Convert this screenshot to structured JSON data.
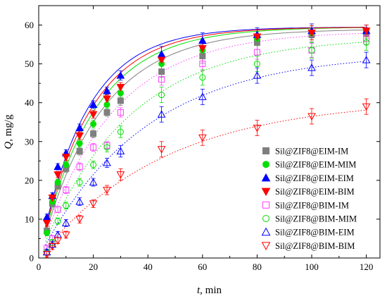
{
  "chart_data": {
    "type": "scatter",
    "xlabel_var": "t",
    "xlabel_unit": ", min",
    "ylabel_var": "Q",
    "ylabel_unit": ", mg/g",
    "xlim": [
      0,
      125
    ],
    "ylim": [
      0,
      65
    ],
    "x_ticks": [
      0,
      20,
      40,
      60,
      80,
      100,
      120
    ],
    "y_ticks": [
      0,
      10,
      20,
      30,
      40,
      50,
      60
    ],
    "x_tick_labels": [
      "0",
      "20",
      "40",
      "60",
      "80",
      "100",
      "120"
    ],
    "y_tick_labels": [
      "0",
      "10",
      "20",
      "30",
      "40",
      "50",
      "60"
    ],
    "grid": false,
    "legend_position": "bottom-right",
    "x": [
      3,
      5,
      7,
      10,
      15,
      20,
      25,
      30,
      45,
      60,
      80,
      100,
      120
    ],
    "series": [
      {
        "name": "Sil@ZIF8@EIM-IM",
        "marker": "square",
        "filled": true,
        "color": "#7f7f7f",
        "line": "solid",
        "values": [
          7,
          14,
          18.5,
          23,
          27.5,
          32,
          37.5,
          40.5,
          48,
          52,
          55.5,
          57.5,
          58
        ],
        "errors": [
          0.8,
          0.8,
          0.8,
          0.9,
          1,
          1,
          1,
          1.2,
          1.5,
          1.8,
          1.8,
          1.8,
          1.5
        ]
      },
      {
        "name": "Sil@ZIF8@EIM-MIM",
        "marker": "circle",
        "filled": true,
        "color": "#00e000",
        "line": "solid",
        "values": [
          6.5,
          14.5,
          19.5,
          24,
          29.5,
          34.5,
          39.5,
          42.5,
          50,
          53.5,
          56.5,
          58,
          58.5
        ],
        "errors": [
          0.8,
          0.8,
          0.8,
          0.9,
          1,
          1,
          1,
          1.2,
          1.5,
          1.8,
          1.8,
          1.8,
          1.5
        ]
      },
      {
        "name": "Sil@ZIF8@EIM-EIM",
        "marker": "triangle-up",
        "filled": true,
        "color": "#0000ff",
        "line": "solid",
        "values": [
          10.5,
          16,
          23.5,
          27,
          33.5,
          39.5,
          43,
          47,
          52.5,
          56,
          57.5,
          58.5,
          58.5
        ],
        "errors": [
          0.8,
          0.8,
          0.8,
          0.9,
          1,
          1,
          1,
          1.2,
          2,
          2,
          1.8,
          1.8,
          1.5
        ]
      },
      {
        "name": "Sil@ZIF8@EIM-BIM",
        "marker": "triangle-down",
        "filled": true,
        "color": "#ff0000",
        "line": "solid",
        "values": [
          9,
          15.5,
          21.5,
          26,
          31.5,
          37,
          41,
          44,
          51,
          54,
          57,
          58,
          58.5
        ],
        "errors": [
          0.8,
          0.8,
          0.8,
          0.9,
          1,
          1,
          1,
          1.2,
          1.5,
          1.8,
          1.8,
          1.8,
          1.5
        ]
      },
      {
        "name": "Sil@ZIF8@BIM-IM",
        "marker": "square",
        "filled": false,
        "color": "#ff40ff",
        "line": "dotted",
        "values": [
          2.5,
          5,
          12.5,
          17.5,
          23.5,
          28.5,
          29,
          37.5,
          46,
          50,
          53,
          53.5,
          56.5
        ],
        "errors": [
          0.8,
          0.8,
          0.8,
          0.9,
          1,
          1,
          1,
          1.2,
          1.5,
          1.8,
          1.8,
          1.8,
          1.5
        ]
      },
      {
        "name": "Sil@ZIF8@BIM-MIM",
        "marker": "circle",
        "filled": false,
        "color": "#00e000",
        "line": "dotted",
        "values": [
          1.5,
          4,
          9.5,
          13.5,
          19.5,
          24,
          28.5,
          32.5,
          42,
          46.5,
          50,
          53.5,
          55.5
        ],
        "errors": [
          0.8,
          0.8,
          0.8,
          0.9,
          1,
          1,
          1.2,
          1.5,
          2,
          2,
          2,
          2,
          2
        ]
      },
      {
        "name": "Sil@ZIF8@BIM-EIM",
        "marker": "triangle-up",
        "filled": false,
        "color": "#0000ff",
        "line": "dotted",
        "values": [
          1.5,
          3.5,
          6,
          9,
          14.5,
          19.5,
          24.5,
          27.5,
          37,
          41.5,
          47,
          49,
          51
        ],
        "errors": [
          0.8,
          0.8,
          0.8,
          0.9,
          1,
          1,
          1.2,
          1.5,
          2,
          2,
          2,
          2,
          2
        ]
      },
      {
        "name": "Sil@ZIF8@BIM-BIM",
        "marker": "triangle-down",
        "filled": false,
        "color": "#ff0000",
        "line": "dotted",
        "values": [
          1,
          3,
          4.5,
          6,
          10,
          14,
          17.5,
          21.5,
          28,
          31,
          33.5,
          36.5,
          39
        ],
        "errors": [
          0.8,
          0.8,
          0.8,
          0.9,
          1,
          1,
          1.2,
          1.5,
          2,
          2,
          2,
          2,
          2
        ]
      }
    ],
    "fits": [
      {
        "qmax": 59.0,
        "k": 0.045
      },
      {
        "qmax": 59.5,
        "k": 0.05
      },
      {
        "qmax": 59.5,
        "k": 0.058
      },
      {
        "qmax": 59.5,
        "k": 0.054
      },
      {
        "qmax": 58.5,
        "k": 0.038
      },
      {
        "qmax": 57.0,
        "k": 0.031
      },
      {
        "qmax": 53.0,
        "k": 0.026
      },
      {
        "qmax": 41.0,
        "k": 0.022
      }
    ]
  }
}
